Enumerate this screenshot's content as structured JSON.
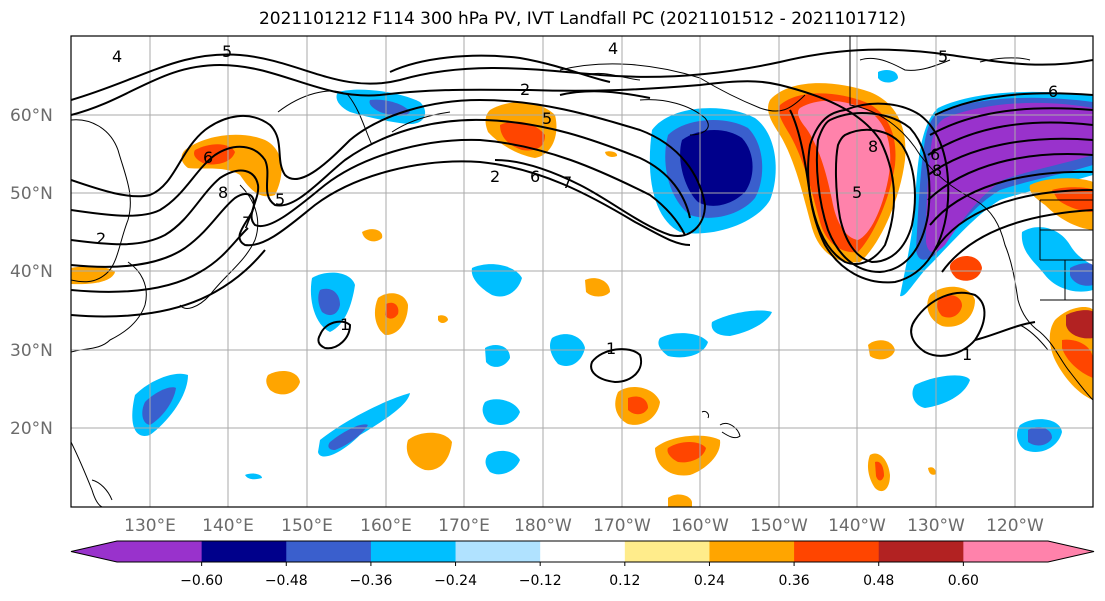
{
  "title": "2021101212 F114 300 hPa PV, IVT Landfall PC (2021101512 - 2021101712)",
  "latitude_labels": [
    "60°N",
    "50°N",
    "40°N",
    "30°N",
    "20°N"
  ],
  "longitude_labels": [
    "130°E",
    "140°E",
    "150°E",
    "160°E",
    "170°E",
    "180°W",
    "170°W",
    "160°W",
    "150°W",
    "140°W",
    "130°W",
    "120°W"
  ],
  "colorbar": {
    "tick_labels": [
      "−0.60",
      "−0.48",
      "−0.36",
      "−0.24",
      "−0.12",
      "0.12",
      "0.24",
      "0.36",
      "0.48",
      "0.60"
    ],
    "colors": [
      "#9932CC",
      "#00008B",
      "#3A5FCD",
      "#00BFFF",
      "#B0E2FF",
      "#FFFFFF",
      "#FFEC8B",
      "#FFA500",
      "#FF4500",
      "#B22222",
      "#FF82AB"
    ]
  },
  "pv_contour_labels": [
    "4",
    "5",
    "4",
    "5",
    "2",
    "2",
    "5",
    "6",
    "7",
    "8",
    "7",
    "6",
    "5",
    "2",
    "1",
    "1",
    "1",
    "8",
    "5",
    "6",
    "8",
    "6"
  ]
}
